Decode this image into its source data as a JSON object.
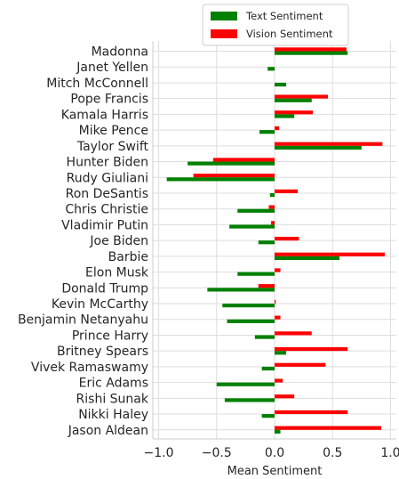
{
  "chart_data": {
    "type": "bar",
    "orientation": "horizontal",
    "categories": [
      "Madonna",
      "Janet Yellen",
      "Mitch McConnell",
      "Pope Francis",
      "Kamala Harris",
      "Mike Pence",
      "Taylor Swift",
      "Hunter Biden",
      "Rudy Giuliani",
      "Ron DeSantis",
      "Chris Christie",
      "Vladimir Putin",
      "Joe Biden",
      "Barbie",
      "Elon Musk",
      "Donald Trump",
      "Kevin McCarthy",
      "Benjamin Netanyahu",
      "Prince Harry",
      "Britney Spears",
      "Vivek Ramaswamy",
      "Eric Adams",
      "Rishi Sunak",
      "Nikki Haley",
      "Jason Aldean"
    ],
    "series": [
      {
        "name": "Text Sentiment",
        "color": "#008000",
        "values": [
          0.63,
          -0.06,
          0.1,
          0.32,
          0.17,
          -0.13,
          0.75,
          -0.75,
          -0.93,
          -0.04,
          -0.32,
          -0.39,
          -0.14,
          0.56,
          -0.32,
          -0.58,
          -0.45,
          -0.41,
          -0.17,
          0.1,
          -0.11,
          -0.5,
          -0.43,
          -0.11,
          0.05
        ]
      },
      {
        "name": "Vision Sentiment",
        "color": "#ff0000",
        "values": [
          0.62,
          0.0,
          0.0,
          0.46,
          0.33,
          0.04,
          0.93,
          -0.53,
          -0.7,
          0.2,
          -0.05,
          -0.03,
          0.21,
          0.95,
          0.05,
          -0.14,
          0.01,
          0.05,
          0.32,
          0.63,
          0.44,
          0.07,
          0.17,
          0.63,
          0.92
        ]
      }
    ],
    "xlabel": "Mean Sentiment",
    "xlim": [
      -1.05,
      1.05
    ],
    "xticks": [
      -1.0,
      -0.5,
      0.0,
      0.5,
      1.0
    ],
    "xtick_labels": [
      "−1.0",
      "−0.5",
      "0.0",
      "0.5",
      "1.0"
    ],
    "grid": true,
    "legend_position": "top"
  }
}
